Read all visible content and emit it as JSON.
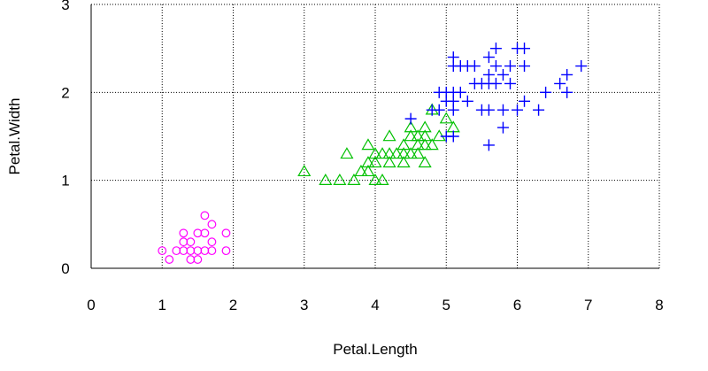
{
  "chart_data": {
    "type": "scatter",
    "title": "",
    "xlabel": "Petal.Length",
    "ylabel": "Petal.Width",
    "xlim": [
      0,
      8
    ],
    "ylim": [
      0,
      3
    ],
    "x_ticks": [
      0,
      1,
      2,
      3,
      4,
      5,
      6,
      7,
      8
    ],
    "y_ticks": [
      0,
      1,
      2,
      3
    ],
    "grid": true,
    "legend": "none",
    "series": [
      {
        "marker": "circle",
        "color": "#ff00ff",
        "points": [
          [
            1.0,
            0.2
          ],
          [
            1.1,
            0.1
          ],
          [
            1.2,
            0.2
          ],
          [
            1.3,
            0.2
          ],
          [
            1.3,
            0.3
          ],
          [
            1.3,
            0.4
          ],
          [
            1.4,
            0.1
          ],
          [
            1.4,
            0.2
          ],
          [
            1.4,
            0.3
          ],
          [
            1.5,
            0.1
          ],
          [
            1.5,
            0.2
          ],
          [
            1.5,
            0.4
          ],
          [
            1.6,
            0.2
          ],
          [
            1.6,
            0.4
          ],
          [
            1.6,
            0.6
          ],
          [
            1.7,
            0.2
          ],
          [
            1.7,
            0.3
          ],
          [
            1.7,
            0.5
          ],
          [
            1.9,
            0.2
          ],
          [
            1.9,
            0.4
          ]
        ]
      },
      {
        "marker": "triangle",
        "color": "#00c000",
        "points": [
          [
            3.0,
            1.1
          ],
          [
            3.3,
            1.0
          ],
          [
            3.5,
            1.0
          ],
          [
            3.6,
            1.3
          ],
          [
            3.7,
            1.0
          ],
          [
            3.8,
            1.1
          ],
          [
            3.9,
            1.1
          ],
          [
            3.9,
            1.2
          ],
          [
            3.9,
            1.4
          ],
          [
            4.0,
            1.0
          ],
          [
            4.0,
            1.2
          ],
          [
            4.0,
            1.3
          ],
          [
            4.1,
            1.0
          ],
          [
            4.1,
            1.3
          ],
          [
            4.2,
            1.2
          ],
          [
            4.2,
            1.3
          ],
          [
            4.2,
            1.5
          ],
          [
            4.3,
            1.3
          ],
          [
            4.4,
            1.2
          ],
          [
            4.4,
            1.3
          ],
          [
            4.4,
            1.4
          ],
          [
            4.5,
            1.3
          ],
          [
            4.5,
            1.5
          ],
          [
            4.5,
            1.6
          ],
          [
            4.6,
            1.3
          ],
          [
            4.6,
            1.4
          ],
          [
            4.6,
            1.5
          ],
          [
            4.7,
            1.2
          ],
          [
            4.7,
            1.4
          ],
          [
            4.7,
            1.5
          ],
          [
            4.7,
            1.6
          ],
          [
            4.8,
            1.4
          ],
          [
            4.8,
            1.8
          ],
          [
            4.9,
            1.5
          ],
          [
            5.0,
            1.7
          ],
          [
            5.1,
            1.6
          ]
        ]
      },
      {
        "marker": "plus",
        "color": "#0000ff",
        "points": [
          [
            4.5,
            1.7
          ],
          [
            4.8,
            1.8
          ],
          [
            4.9,
            1.8
          ],
          [
            4.9,
            2.0
          ],
          [
            5.0,
            1.5
          ],
          [
            5.0,
            1.9
          ],
          [
            5.0,
            2.0
          ],
          [
            5.1,
            1.5
          ],
          [
            5.1,
            1.8
          ],
          [
            5.1,
            1.9
          ],
          [
            5.1,
            2.0
          ],
          [
            5.1,
            2.3
          ],
          [
            5.1,
            2.4
          ],
          [
            5.2,
            2.0
          ],
          [
            5.2,
            2.3
          ],
          [
            5.3,
            1.9
          ],
          [
            5.3,
            2.3
          ],
          [
            5.4,
            2.1
          ],
          [
            5.4,
            2.3
          ],
          [
            5.5,
            1.8
          ],
          [
            5.5,
            2.1
          ],
          [
            5.6,
            1.4
          ],
          [
            5.6,
            1.8
          ],
          [
            5.6,
            2.1
          ],
          [
            5.6,
            2.2
          ],
          [
            5.6,
            2.4
          ],
          [
            5.7,
            2.1
          ],
          [
            5.7,
            2.3
          ],
          [
            5.7,
            2.5
          ],
          [
            5.8,
            1.6
          ],
          [
            5.8,
            1.8
          ],
          [
            5.8,
            2.2
          ],
          [
            5.9,
            2.1
          ],
          [
            5.9,
            2.3
          ],
          [
            6.0,
            1.8
          ],
          [
            6.0,
            2.5
          ],
          [
            6.1,
            1.9
          ],
          [
            6.1,
            2.3
          ],
          [
            6.1,
            2.5
          ],
          [
            6.3,
            1.8
          ],
          [
            6.4,
            2.0
          ],
          [
            6.6,
            2.1
          ],
          [
            6.7,
            2.0
          ],
          [
            6.7,
            2.2
          ],
          [
            6.9,
            2.3
          ]
        ]
      }
    ]
  }
}
